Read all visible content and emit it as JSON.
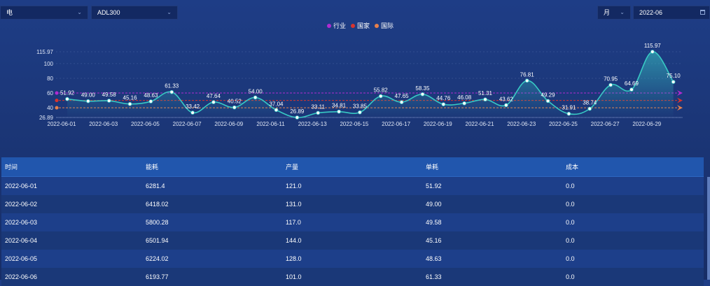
{
  "controls": {
    "energy_select": "电",
    "code_select": "ADL300",
    "period_select": "月",
    "date_value": "2022-06"
  },
  "chart_data": {
    "type": "line",
    "title": "",
    "legend": [
      "行业",
      "国家",
      "国际"
    ],
    "legend_placement": "top-center",
    "y_axis_labels": [
      26.89,
      40,
      60,
      80,
      100,
      115.97
    ],
    "ylim": [
      26.89,
      115.97
    ],
    "x": [
      "2022-06-01",
      "2022-06-02",
      "2022-06-03",
      "2022-06-04",
      "2022-06-05",
      "2022-06-06",
      "2022-06-07",
      "2022-06-08",
      "2022-06-09",
      "2022-06-10",
      "2022-06-11",
      "2022-06-12",
      "2022-06-13",
      "2022-06-14",
      "2022-06-15",
      "2022-06-16",
      "2022-06-17",
      "2022-06-18",
      "2022-06-19",
      "2022-06-20",
      "2022-06-21",
      "2022-06-22",
      "2022-06-23",
      "2022-06-24",
      "2022-06-25",
      "2022-06-26",
      "2022-06-27",
      "2022-06-28",
      "2022-06-29",
      "2022-06-30"
    ],
    "x_tick_labels": [
      "2022-06-01",
      "2022-06-03",
      "2022-06-05",
      "2022-06-07",
      "2022-06-09",
      "2022-06-11",
      "2022-06-13",
      "2022-06-15",
      "2022-06-17",
      "2022-06-19",
      "2022-06-21",
      "2022-06-23",
      "2022-06-25",
      "2022-06-27",
      "2022-06-29"
    ],
    "values": [
      51.92,
      49.0,
      49.58,
      45.16,
      48.63,
      61.33,
      33.42,
      47.64,
      40.52,
      54.0,
      37.04,
      26.89,
      33.11,
      34.81,
      33.85,
      55.82,
      47.65,
      58.35,
      44.76,
      46.08,
      51.31,
      43.62,
      76.81,
      49.29,
      31.91,
      38.74,
      70.95,
      64.69,
      115.97,
      75.1
    ],
    "reference_lines": [
      {
        "name": "行业",
        "value": 60,
        "color": "#b02bd1"
      },
      {
        "name": "国家",
        "value": 50,
        "color": "#d9342e"
      },
      {
        "name": "国际",
        "value": 40,
        "color": "#e8804a"
      }
    ],
    "line_color": "#38c9c4"
  },
  "table": {
    "headers": [
      "时间",
      "能耗",
      "产量",
      "单耗",
      "成本"
    ],
    "rows": [
      [
        "2022-06-01",
        "6281.4",
        "121.0",
        "51.92",
        "0.0"
      ],
      [
        "2022-06-02",
        "6418.02",
        "131.0",
        "49.00",
        "0.0"
      ],
      [
        "2022-06-03",
        "5800.28",
        "117.0",
        "49.58",
        "0.0"
      ],
      [
        "2022-06-04",
        "6501.94",
        "144.0",
        "45.16",
        "0.0"
      ],
      [
        "2022-06-05",
        "6224.02",
        "128.0",
        "48.63",
        "0.0"
      ],
      [
        "2022-06-06",
        "6193.77",
        "101.0",
        "61.33",
        "0.0"
      ]
    ]
  }
}
